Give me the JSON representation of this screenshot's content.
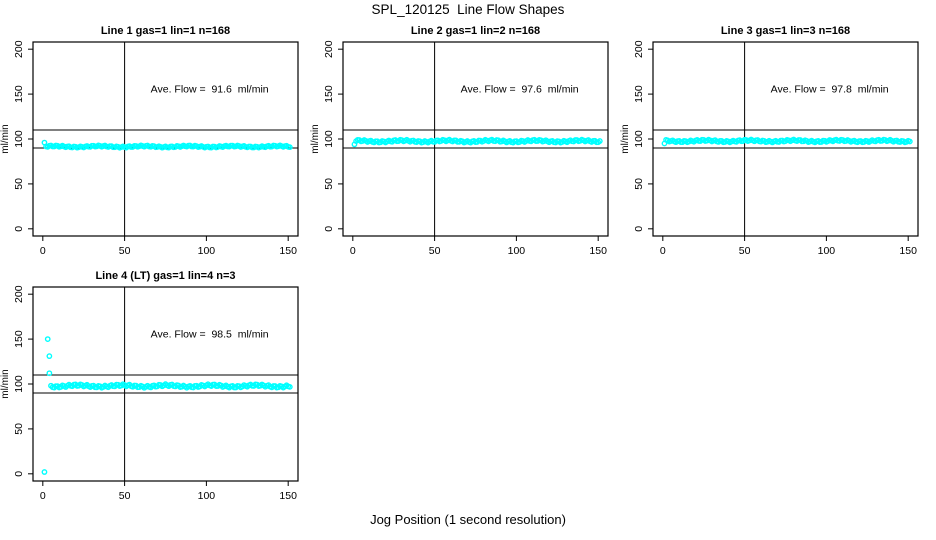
{
  "title": "SPL_120125  Line Flow Shapes",
  "xlabel": "Jog Position (1 second resolution)",
  "chart_data": {
    "type": "scatter",
    "title": "SPL_120125  Line Flow Shapes",
    "xlabel": "Jog Position (1 second resolution)",
    "ylabel": "ml/min",
    "xlim": [
      0,
      150
    ],
    "ylim": [
      0,
      200
    ],
    "x_ticks": [
      0,
      50,
      100,
      150
    ],
    "y_ticks": [
      0,
      50,
      100,
      150,
      200
    ],
    "grid": false,
    "legend": "none",
    "point_color": "#00FFFF",
    "frame_color": "#000000",
    "ref_lines_y": [
      110,
      90
    ],
    "ref_line_x": 50,
    "annotation_pos": {
      "x": 102,
      "y": 152
    },
    "panels": [
      {
        "title": "Line 1 gas=1 lin=1 n=168",
        "n": 168,
        "ave_flow_ml_min": 91.6,
        "annotation": "Ave. Flow =  91.6  ml/min",
        "band": {
          "x_from": 2,
          "x_to": 151,
          "value": 91.6,
          "jitter": 1.3
        },
        "extra_points": [
          [
            1,
            96
          ]
        ]
      },
      {
        "title": "Line 2 gas=1 lin=2 n=168",
        "n": 168,
        "ave_flow_ml_min": 97.6,
        "annotation": "Ave. Flow =  97.6  ml/min",
        "band": {
          "x_from": 2,
          "x_to": 151,
          "value": 97.6,
          "jitter": 1.7
        },
        "extra_points": [
          [
            1,
            94
          ]
        ]
      },
      {
        "title": "Line 3 gas=1 lin=3 n=168",
        "n": 168,
        "ave_flow_ml_min": 97.8,
        "annotation": "Ave. Flow =  97.8  ml/min",
        "band": {
          "x_from": 2,
          "x_to": 151,
          "value": 97.8,
          "jitter": 1.6
        },
        "extra_points": [
          [
            1,
            95
          ]
        ]
      },
      {
        "title": "Line 4 (LT) gas=1 lin=4 n=3",
        "n": 3,
        "ave_flow_ml_min": 98.5,
        "annotation": "Ave. Flow =  98.5  ml/min",
        "band": {
          "x_from": 5,
          "x_to": 151,
          "value": 97.8,
          "jitter": 2.0
        },
        "extra_points": [
          [
            1,
            2
          ],
          [
            3,
            150
          ],
          [
            4,
            131
          ],
          [
            4,
            112
          ]
        ]
      }
    ]
  }
}
